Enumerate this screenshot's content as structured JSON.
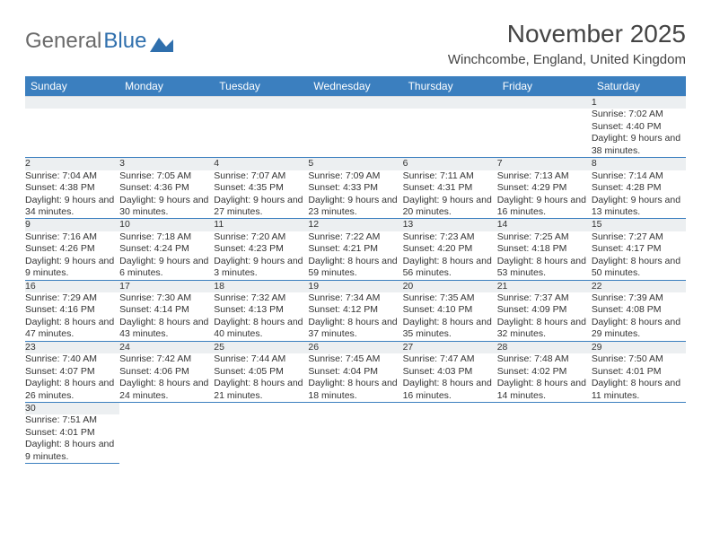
{
  "brand": {
    "name_a": "General",
    "name_b": "Blue"
  },
  "title": "November 2025",
  "subtitle": "Winchcombe, England, United Kingdom",
  "colors": {
    "header_bg": "#3b7fbf",
    "header_fg": "#ffffff",
    "daynum_bg": "#eceff1",
    "border_blue": "#3b7fbf"
  },
  "day_headers": [
    "Sunday",
    "Monday",
    "Tuesday",
    "Wednesday",
    "Thursday",
    "Friday",
    "Saturday"
  ],
  "weeks": [
    [
      null,
      null,
      null,
      null,
      null,
      null,
      {
        "n": "1",
        "sunrise": "Sunrise: 7:02 AM",
        "sunset": "Sunset: 4:40 PM",
        "daylight": "Daylight: 9 hours and 38 minutes."
      }
    ],
    [
      {
        "n": "2",
        "sunrise": "Sunrise: 7:04 AM",
        "sunset": "Sunset: 4:38 PM",
        "daylight": "Daylight: 9 hours and 34 minutes."
      },
      {
        "n": "3",
        "sunrise": "Sunrise: 7:05 AM",
        "sunset": "Sunset: 4:36 PM",
        "daylight": "Daylight: 9 hours and 30 minutes."
      },
      {
        "n": "4",
        "sunrise": "Sunrise: 7:07 AM",
        "sunset": "Sunset: 4:35 PM",
        "daylight": "Daylight: 9 hours and 27 minutes."
      },
      {
        "n": "5",
        "sunrise": "Sunrise: 7:09 AM",
        "sunset": "Sunset: 4:33 PM",
        "daylight": "Daylight: 9 hours and 23 minutes."
      },
      {
        "n": "6",
        "sunrise": "Sunrise: 7:11 AM",
        "sunset": "Sunset: 4:31 PM",
        "daylight": "Daylight: 9 hours and 20 minutes."
      },
      {
        "n": "7",
        "sunrise": "Sunrise: 7:13 AM",
        "sunset": "Sunset: 4:29 PM",
        "daylight": "Daylight: 9 hours and 16 minutes."
      },
      {
        "n": "8",
        "sunrise": "Sunrise: 7:14 AM",
        "sunset": "Sunset: 4:28 PM",
        "daylight": "Daylight: 9 hours and 13 minutes."
      }
    ],
    [
      {
        "n": "9",
        "sunrise": "Sunrise: 7:16 AM",
        "sunset": "Sunset: 4:26 PM",
        "daylight": "Daylight: 9 hours and 9 minutes."
      },
      {
        "n": "10",
        "sunrise": "Sunrise: 7:18 AM",
        "sunset": "Sunset: 4:24 PM",
        "daylight": "Daylight: 9 hours and 6 minutes."
      },
      {
        "n": "11",
        "sunrise": "Sunrise: 7:20 AM",
        "sunset": "Sunset: 4:23 PM",
        "daylight": "Daylight: 9 hours and 3 minutes."
      },
      {
        "n": "12",
        "sunrise": "Sunrise: 7:22 AM",
        "sunset": "Sunset: 4:21 PM",
        "daylight": "Daylight: 8 hours and 59 minutes."
      },
      {
        "n": "13",
        "sunrise": "Sunrise: 7:23 AM",
        "sunset": "Sunset: 4:20 PM",
        "daylight": "Daylight: 8 hours and 56 minutes."
      },
      {
        "n": "14",
        "sunrise": "Sunrise: 7:25 AM",
        "sunset": "Sunset: 4:18 PM",
        "daylight": "Daylight: 8 hours and 53 minutes."
      },
      {
        "n": "15",
        "sunrise": "Sunrise: 7:27 AM",
        "sunset": "Sunset: 4:17 PM",
        "daylight": "Daylight: 8 hours and 50 minutes."
      }
    ],
    [
      {
        "n": "16",
        "sunrise": "Sunrise: 7:29 AM",
        "sunset": "Sunset: 4:16 PM",
        "daylight": "Daylight: 8 hours and 47 minutes."
      },
      {
        "n": "17",
        "sunrise": "Sunrise: 7:30 AM",
        "sunset": "Sunset: 4:14 PM",
        "daylight": "Daylight: 8 hours and 43 minutes."
      },
      {
        "n": "18",
        "sunrise": "Sunrise: 7:32 AM",
        "sunset": "Sunset: 4:13 PM",
        "daylight": "Daylight: 8 hours and 40 minutes."
      },
      {
        "n": "19",
        "sunrise": "Sunrise: 7:34 AM",
        "sunset": "Sunset: 4:12 PM",
        "daylight": "Daylight: 8 hours and 37 minutes."
      },
      {
        "n": "20",
        "sunrise": "Sunrise: 7:35 AM",
        "sunset": "Sunset: 4:10 PM",
        "daylight": "Daylight: 8 hours and 35 minutes."
      },
      {
        "n": "21",
        "sunrise": "Sunrise: 7:37 AM",
        "sunset": "Sunset: 4:09 PM",
        "daylight": "Daylight: 8 hours and 32 minutes."
      },
      {
        "n": "22",
        "sunrise": "Sunrise: 7:39 AM",
        "sunset": "Sunset: 4:08 PM",
        "daylight": "Daylight: 8 hours and 29 minutes."
      }
    ],
    [
      {
        "n": "23",
        "sunrise": "Sunrise: 7:40 AM",
        "sunset": "Sunset: 4:07 PM",
        "daylight": "Daylight: 8 hours and 26 minutes."
      },
      {
        "n": "24",
        "sunrise": "Sunrise: 7:42 AM",
        "sunset": "Sunset: 4:06 PM",
        "daylight": "Daylight: 8 hours and 24 minutes."
      },
      {
        "n": "25",
        "sunrise": "Sunrise: 7:44 AM",
        "sunset": "Sunset: 4:05 PM",
        "daylight": "Daylight: 8 hours and 21 minutes."
      },
      {
        "n": "26",
        "sunrise": "Sunrise: 7:45 AM",
        "sunset": "Sunset: 4:04 PM",
        "daylight": "Daylight: 8 hours and 18 minutes."
      },
      {
        "n": "27",
        "sunrise": "Sunrise: 7:47 AM",
        "sunset": "Sunset: 4:03 PM",
        "daylight": "Daylight: 8 hours and 16 minutes."
      },
      {
        "n": "28",
        "sunrise": "Sunrise: 7:48 AM",
        "sunset": "Sunset: 4:02 PM",
        "daylight": "Daylight: 8 hours and 14 minutes."
      },
      {
        "n": "29",
        "sunrise": "Sunrise: 7:50 AM",
        "sunset": "Sunset: 4:01 PM",
        "daylight": "Daylight: 8 hours and 11 minutes."
      }
    ],
    [
      {
        "n": "30",
        "sunrise": "Sunrise: 7:51 AM",
        "sunset": "Sunset: 4:01 PM",
        "daylight": "Daylight: 8 hours and 9 minutes."
      },
      null,
      null,
      null,
      null,
      null,
      null
    ]
  ]
}
